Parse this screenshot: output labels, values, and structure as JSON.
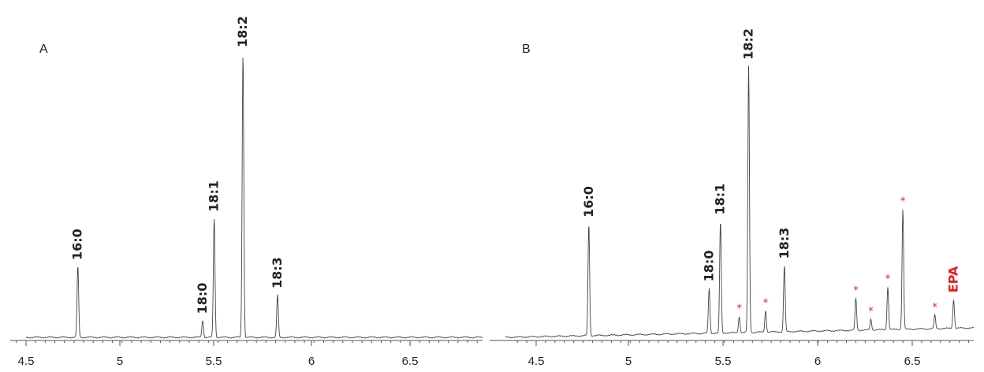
{
  "colors": {
    "trace": "#444444",
    "axis": "#555555",
    "label": "#222222",
    "highlight": "#e02020"
  },
  "chart_data": [
    {
      "type": "line",
      "panel_label": "A",
      "xlim": [
        4.5,
        6.85
      ],
      "ylim": [
        0,
        1.0
      ],
      "x_ticks": [
        "4.5",
        "5",
        "5.5",
        "6",
        "6.5"
      ],
      "peaks": [
        {
          "label": "16:0",
          "x": 4.77,
          "height": 0.25,
          "label_color": "#222222"
        },
        {
          "label": "18:0",
          "x": 5.42,
          "height": 0.06,
          "label_color": "#222222"
        },
        {
          "label": "18:1",
          "x": 5.48,
          "height": 0.42,
          "label_color": "#222222"
        },
        {
          "label": "18:2",
          "x": 5.63,
          "height": 1.0,
          "label_color": "#222222"
        },
        {
          "label": "18:3",
          "x": 5.81,
          "height": 0.15,
          "label_color": "#222222"
        }
      ],
      "markers": []
    },
    {
      "type": "line",
      "panel_label": "B",
      "xlim": [
        4.5,
        6.82
      ],
      "ylim": [
        0,
        1.0
      ],
      "x_ticks": [
        "4.5",
        "5",
        "5.5",
        "6",
        "6.5"
      ],
      "peaks": [
        {
          "label": "16:0",
          "x": 4.78,
          "height": 0.42,
          "label_color": "#222222"
        },
        {
          "label": "18:0",
          "x": 5.42,
          "height": 0.17,
          "label_color": "#222222"
        },
        {
          "label": "18:1",
          "x": 5.48,
          "height": 0.42,
          "label_color": "#222222"
        },
        {
          "label": "18:2",
          "x": 5.63,
          "height": 1.0,
          "label_color": "#222222"
        },
        {
          "label": "18:3",
          "x": 5.82,
          "height": 0.25,
          "label_color": "#222222"
        },
        {
          "label": "EPA",
          "x": 6.72,
          "height": 0.11,
          "label_color": "#e02020"
        }
      ],
      "markers": [
        {
          "symbol": "*",
          "x": 5.58,
          "height": 0.06
        },
        {
          "symbol": "*",
          "x": 5.72,
          "height": 0.08
        },
        {
          "symbol": "*",
          "x": 6.2,
          "height": 0.12
        },
        {
          "symbol": "*",
          "x": 6.28,
          "height": 0.04
        },
        {
          "symbol": "*",
          "x": 6.37,
          "height": 0.16
        },
        {
          "symbol": "*",
          "x": 6.45,
          "height": 0.45
        },
        {
          "symbol": "*",
          "x": 6.62,
          "height": 0.05
        }
      ]
    }
  ]
}
